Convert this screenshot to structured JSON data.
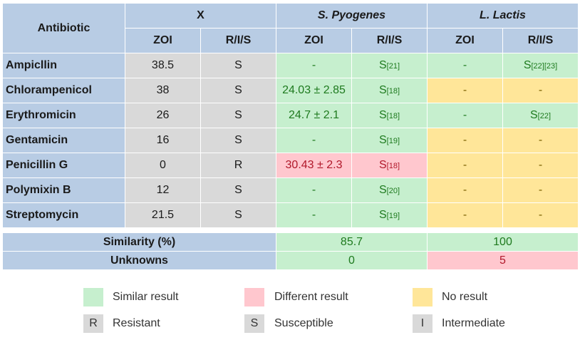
{
  "header": {
    "antibiotic": "Antibiotic",
    "groups": [
      {
        "label": "X",
        "italic": false
      },
      {
        "label": "S. Pyogenes",
        "italic": true
      },
      {
        "label": "L. Lactis",
        "italic": true
      }
    ],
    "zoi": "ZOI",
    "ris": "R/I/S"
  },
  "rows": [
    {
      "name": "Ampicllin",
      "x_zoi": "38.5",
      "x_ris": "S",
      "sp_zoi": "-",
      "sp_ris": "S",
      "sp_ref": "[21]",
      "sp_color": "green",
      "ll_zoi": "-",
      "ll_ris": "S",
      "ll_ref": "[22][23]",
      "ll_color": "green"
    },
    {
      "name": "Chlorampenicol",
      "x_zoi": "38",
      "x_ris": "S",
      "sp_zoi": "24.03 ± 2.85",
      "sp_ris": "S",
      "sp_ref": "[18]",
      "sp_color": "green",
      "ll_zoi": "-",
      "ll_ris": "-",
      "ll_ref": "",
      "ll_color": "yellow"
    },
    {
      "name": "Erythromicin",
      "x_zoi": "26",
      "x_ris": "S",
      "sp_zoi": "24.7 ± 2.1",
      "sp_ris": "S",
      "sp_ref": "[18]",
      "sp_color": "green",
      "ll_zoi": "-",
      "ll_ris": "S",
      "ll_ref": "[22]",
      "ll_color": "green"
    },
    {
      "name": "Gentamicin",
      "x_zoi": "16",
      "x_ris": "S",
      "sp_zoi": "-",
      "sp_ris": "S",
      "sp_ref": "[19]",
      "sp_color": "green",
      "ll_zoi": "-",
      "ll_ris": "-",
      "ll_ref": "",
      "ll_color": "yellow"
    },
    {
      "name": "Penicillin G",
      "x_zoi": "0",
      "x_ris": "R",
      "sp_zoi": "30.43 ± 2.3",
      "sp_ris": "S",
      "sp_ref": "[18]",
      "sp_color": "red",
      "ll_zoi": "-",
      "ll_ris": "-",
      "ll_ref": "",
      "ll_color": "yellow"
    },
    {
      "name": "Polymixin B",
      "x_zoi": "12",
      "x_ris": "S",
      "sp_zoi": "-",
      "sp_ris": "S",
      "sp_ref": "[20]",
      "sp_color": "green",
      "ll_zoi": "-",
      "ll_ris": "-",
      "ll_ref": "",
      "ll_color": "yellow"
    },
    {
      "name": "Streptomycin",
      "x_zoi": "21.5",
      "x_ris": "S",
      "sp_zoi": "-",
      "sp_ris": "S",
      "sp_ref": "[19]",
      "sp_color": "green",
      "ll_zoi": "-",
      "ll_ris": "-",
      "ll_ref": "",
      "ll_color": "yellow"
    }
  ],
  "summary": {
    "similarity_label": "Similarity (%)",
    "similarity_sp": "85.7",
    "similarity_ll": "100",
    "unknowns_label": "Unknowns",
    "unknowns_sp": "0",
    "unknowns_ll": "5"
  },
  "legend": {
    "similar": "Similar result",
    "different": "Different result",
    "none": "No result",
    "r_symbol": "R",
    "r_label": "Resistant",
    "s_symbol": "S",
    "s_label": "Susceptible",
    "i_symbol": "I",
    "i_label": "Intermediate"
  },
  "colors": {
    "header": "#b8cce4",
    "grey": "#d9d9d9",
    "similar": "#c6efce",
    "different": "#ffc7ce",
    "no_result": "#ffe699"
  }
}
